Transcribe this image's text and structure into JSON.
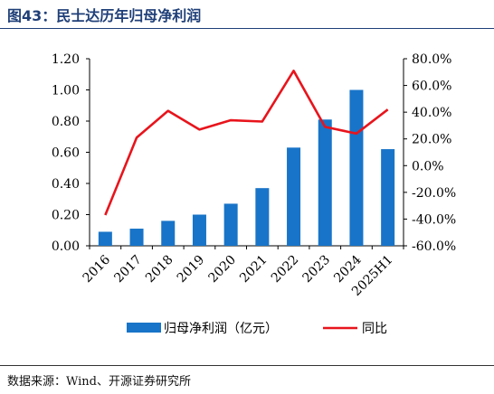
{
  "header": {
    "title": "图43：民士达历年归母净利润"
  },
  "footer": {
    "source": "数据来源：Wind、开源证券研究所"
  },
  "chart_data": {
    "type": "bar",
    "categories": [
      "2016",
      "2017",
      "2018",
      "2019",
      "2020",
      "2021",
      "2022",
      "2023",
      "2024",
      "2025H1"
    ],
    "series": [
      {
        "name": "归母净利润（亿元）",
        "type": "bar",
        "axis": "left",
        "color": "#1874c8",
        "values": [
          0.09,
          0.11,
          0.16,
          0.2,
          0.27,
          0.37,
          0.63,
          0.81,
          1.0,
          0.62
        ]
      },
      {
        "name": "同比",
        "type": "line",
        "axis": "right",
        "color": "#e8141c",
        "values": [
          -37.0,
          21.0,
          41.0,
          27.0,
          34.0,
          33.0,
          71.0,
          29.0,
          24.0,
          42.0
        ]
      }
    ],
    "ylim_left": [
      0,
      1.2
    ],
    "yticks_left": [
      "0.00",
      "0.20",
      "0.40",
      "0.60",
      "0.80",
      "1.00",
      "1.20"
    ],
    "ylim_right": [
      -60,
      80
    ],
    "yticks_right": [
      "-60.0%",
      "-40.0%",
      "-20.0%",
      "0.0%",
      "20.0%",
      "40.0%",
      "60.0%",
      "80.0%"
    ],
    "grid": false,
    "legend_position": "bottom"
  }
}
